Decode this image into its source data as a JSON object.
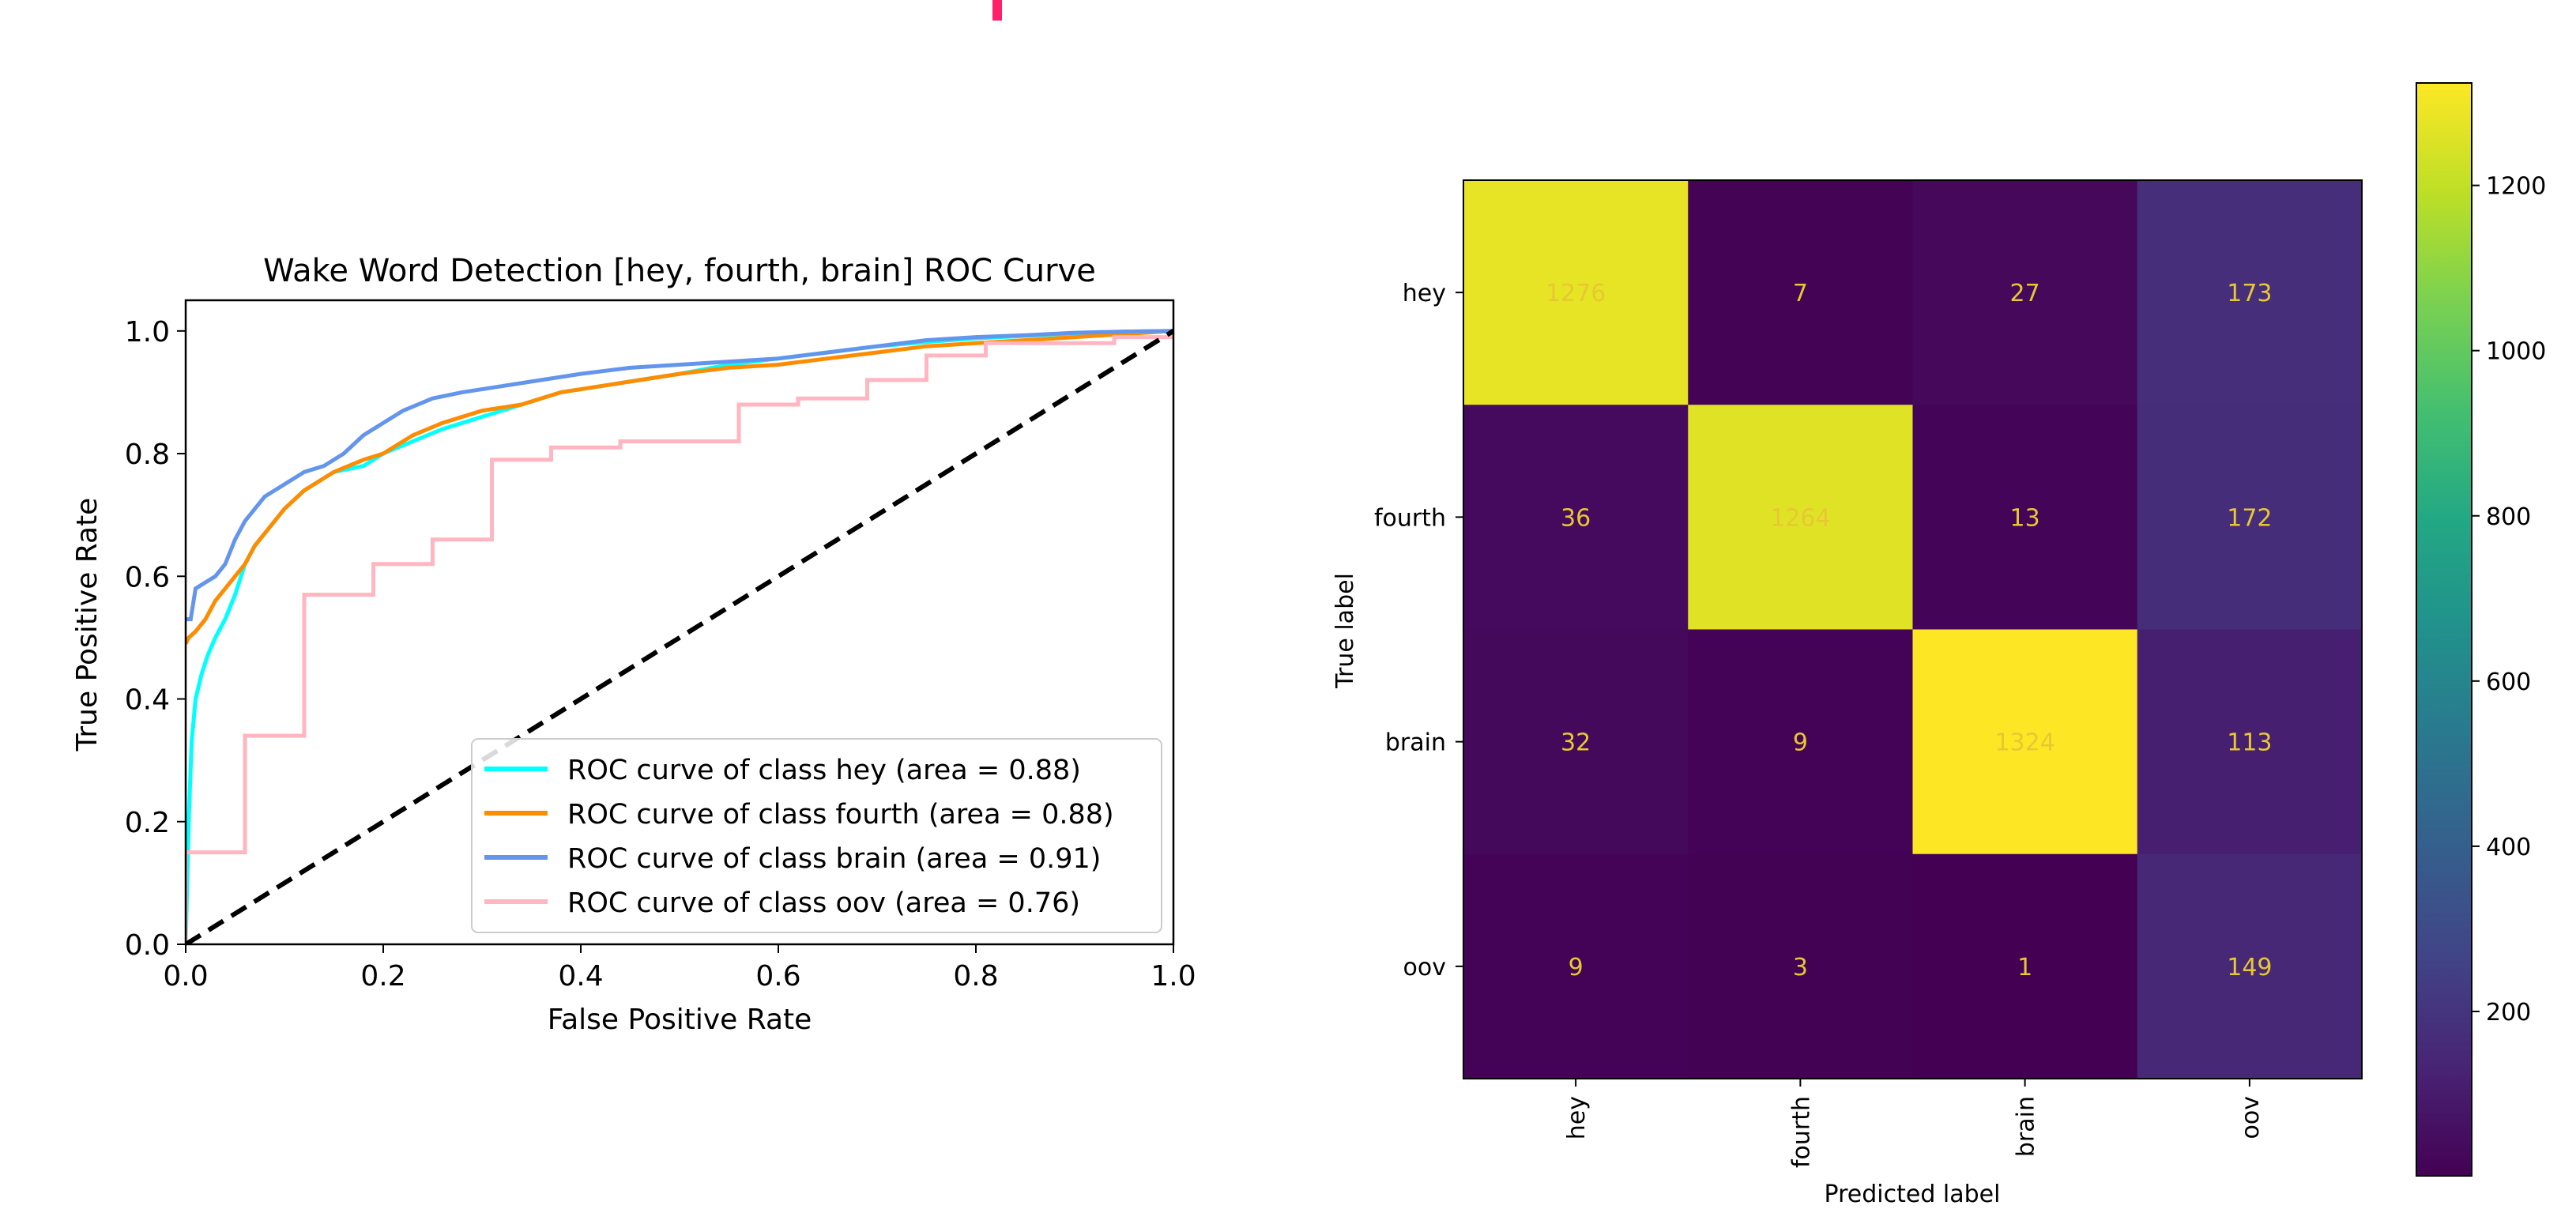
{
  "chart_data": [
    {
      "type": "line",
      "title": "Wake Word Detection [hey, fourth, brain] ROC Curve",
      "xlabel": "False Positive Rate",
      "ylabel": "True Positive Rate",
      "xlim": [
        0.0,
        1.0
      ],
      "ylim": [
        0.0,
        1.05
      ],
      "xticks": [
        "0.0",
        "0.2",
        "0.4",
        "0.6",
        "0.8",
        "1.0"
      ],
      "yticks": [
        "0.0",
        "0.2",
        "0.4",
        "0.6",
        "0.8",
        "1.0"
      ],
      "grid": false,
      "legend_position": "lower-right",
      "chance_line": {
        "x": [
          0,
          1
        ],
        "y": [
          0,
          1
        ],
        "color": "#000000",
        "style": "dashed"
      },
      "series": [
        {
          "name": "ROC curve of class hey (area = 0.88)",
          "color": "#00ffff",
          "x": [
            0,
            0.003,
            0.006,
            0.01,
            0.016,
            0.022,
            0.03,
            0.04,
            0.05,
            0.06,
            0.07,
            0.085,
            0.1,
            0.12,
            0.15,
            0.18,
            0.2,
            0.23,
            0.26,
            0.3,
            0.34,
            0.38,
            0.42,
            0.46,
            0.5,
            0.55,
            0.6,
            0.65,
            0.7,
            0.75,
            0.8,
            0.85,
            0.9,
            0.95,
            1.0
          ],
          "y": [
            0,
            0.2,
            0.33,
            0.4,
            0.44,
            0.47,
            0.5,
            0.53,
            0.57,
            0.62,
            0.65,
            0.68,
            0.71,
            0.74,
            0.77,
            0.78,
            0.8,
            0.82,
            0.84,
            0.86,
            0.88,
            0.9,
            0.91,
            0.92,
            0.93,
            0.945,
            0.955,
            0.965,
            0.975,
            0.982,
            0.988,
            0.992,
            0.996,
            0.999,
            1.0
          ]
        },
        {
          "name": "ROC curve of class fourth (area = 0.88)",
          "color": "#ff8c00",
          "x": [
            0,
            0.003,
            0.01,
            0.02,
            0.03,
            0.04,
            0.05,
            0.06,
            0.07,
            0.085,
            0.1,
            0.12,
            0.15,
            0.18,
            0.2,
            0.23,
            0.26,
            0.3,
            0.34,
            0.38,
            0.42,
            0.46,
            0.5,
            0.55,
            0.6,
            0.65,
            0.7,
            0.75,
            0.8,
            0.85,
            0.9,
            0.95,
            1.0
          ],
          "y": [
            0.49,
            0.5,
            0.51,
            0.53,
            0.56,
            0.58,
            0.6,
            0.62,
            0.65,
            0.68,
            0.71,
            0.74,
            0.77,
            0.79,
            0.8,
            0.83,
            0.85,
            0.87,
            0.88,
            0.9,
            0.91,
            0.92,
            0.93,
            0.94,
            0.945,
            0.955,
            0.965,
            0.975,
            0.98,
            0.985,
            0.99,
            0.995,
            1.0
          ]
        },
        {
          "name": "ROC curve of class brain (area = 0.91)",
          "color": "#6495ed",
          "x": [
            0,
            0.005,
            0.01,
            0.02,
            0.03,
            0.04,
            0.05,
            0.06,
            0.07,
            0.08,
            0.1,
            0.12,
            0.14,
            0.16,
            0.18,
            0.2,
            0.22,
            0.25,
            0.28,
            0.32,
            0.36,
            0.4,
            0.45,
            0.5,
            0.55,
            0.6,
            0.65,
            0.7,
            0.75,
            0.8,
            0.85,
            0.9,
            0.95,
            1.0
          ],
          "y": [
            0.53,
            0.53,
            0.58,
            0.59,
            0.6,
            0.62,
            0.66,
            0.69,
            0.71,
            0.73,
            0.75,
            0.77,
            0.78,
            0.8,
            0.83,
            0.85,
            0.87,
            0.89,
            0.9,
            0.91,
            0.92,
            0.93,
            0.94,
            0.945,
            0.95,
            0.955,
            0.965,
            0.975,
            0.985,
            0.99,
            0.993,
            0.997,
            0.999,
            1.0
          ]
        },
        {
          "name": "ROC curve of class oov (area = 0.76)",
          "color": "#ffb6c1",
          "x": [
            0,
            0.0,
            0.06,
            0.06,
            0.12,
            0.12,
            0.19,
            0.19,
            0.25,
            0.25,
            0.31,
            0.31,
            0.37,
            0.37,
            0.44,
            0.44,
            0.56,
            0.56,
            0.62,
            0.62,
            0.69,
            0.69,
            0.75,
            0.75,
            0.81,
            0.81,
            0.94,
            0.94,
            1.0,
            1.0
          ],
          "y": [
            0,
            0.15,
            0.15,
            0.34,
            0.34,
            0.57,
            0.57,
            0.62,
            0.62,
            0.66,
            0.66,
            0.79,
            0.79,
            0.81,
            0.81,
            0.82,
            0.82,
            0.88,
            0.88,
            0.89,
            0.89,
            0.92,
            0.92,
            0.96,
            0.96,
            0.98,
            0.98,
            0.99,
            0.99,
            1.0
          ]
        }
      ]
    },
    {
      "type": "heatmap",
      "xlabel": "Predicted label",
      "ylabel": "True label",
      "x_categories": [
        "hey",
        "fourth",
        "brain",
        "oov"
      ],
      "y_categories": [
        "hey",
        "fourth",
        "brain",
        "oov"
      ],
      "values": [
        [
          1276,
          7,
          27,
          173
        ],
        [
          36,
          1264,
          13,
          172
        ],
        [
          32,
          9,
          1324,
          113
        ],
        [
          9,
          3,
          1,
          149
        ]
      ],
      "colormap": "viridis",
      "colorbar_range": [
        1,
        1324
      ],
      "colorbar_ticks": [
        "200",
        "400",
        "600",
        "800",
        "1000",
        "1200"
      ],
      "cell_text_color": "#e6c832"
    }
  ]
}
